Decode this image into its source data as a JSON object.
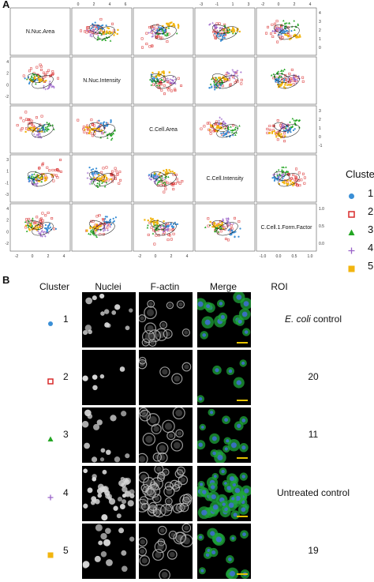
{
  "panel_a_label": "A",
  "panel_b_label": "B",
  "variables": [
    "N.Nuc.Area",
    "N.Nuc.Intensity",
    "C.Cell.Area",
    "C.Cell.Intensity",
    "C.Cell.1.Form.Factor"
  ],
  "top_ticks": [
    [
      "0",
      "2",
      "4",
      "6"
    ],
    [
      "-3",
      "-1",
      "1",
      "3"
    ],
    [
      "-2",
      "0",
      "2",
      "4"
    ]
  ],
  "right_ticks": [
    [
      "0",
      "1",
      "2",
      "3",
      "4"
    ],
    [
      "-1",
      "0",
      "1",
      "2",
      "3"
    ],
    [
      "0.0",
      "0.5",
      "1.0"
    ]
  ],
  "left_ticks": [
    [
      "-2",
      "0",
      "2",
      "4"
    ],
    [
      "-3",
      "-1",
      "1",
      "3"
    ],
    [
      "-2",
      "0",
      "2",
      "4"
    ]
  ],
  "bottom_ticks": [
    [
      "-2",
      "0",
      "2",
      "4"
    ],
    [
      "-2",
      "0",
      "2",
      "4"
    ],
    [
      "-1.0",
      "0.0",
      "0.5",
      "1.0"
    ]
  ],
  "legend": {
    "title": "Cluster",
    "items": [
      {
        "label": "1",
        "symbol": "circle-filled",
        "color": "#3a8fd6"
      },
      {
        "label": "2",
        "symbol": "square-open",
        "color": "#d92b2b"
      },
      {
        "label": "3",
        "symbol": "triangle-filled",
        "color": "#23a623"
      },
      {
        "label": "4",
        "symbol": "plus",
        "color": "#9a63c9"
      },
      {
        "label": "5",
        "symbol": "square-filled",
        "color": "#f2b50f"
      }
    ]
  },
  "panel_b": {
    "headers": {
      "cluster": "Cluster",
      "nuclei": "Nuclei",
      "factin": "F-actin",
      "merge": "Merge",
      "roi": "ROI"
    },
    "rows": [
      {
        "cluster": "1",
        "roi_italic": "E. coli",
        "roi_rest": " control"
      },
      {
        "cluster": "2",
        "roi_italic": "",
        "roi_rest": "20"
      },
      {
        "cluster": "3",
        "roi_italic": "",
        "roi_rest": "11"
      },
      {
        "cluster": "4",
        "roi_italic": "",
        "roi_rest": "Untreated control"
      },
      {
        "cluster": "5",
        "roi_italic": "",
        "roi_rest": "19"
      }
    ]
  }
}
